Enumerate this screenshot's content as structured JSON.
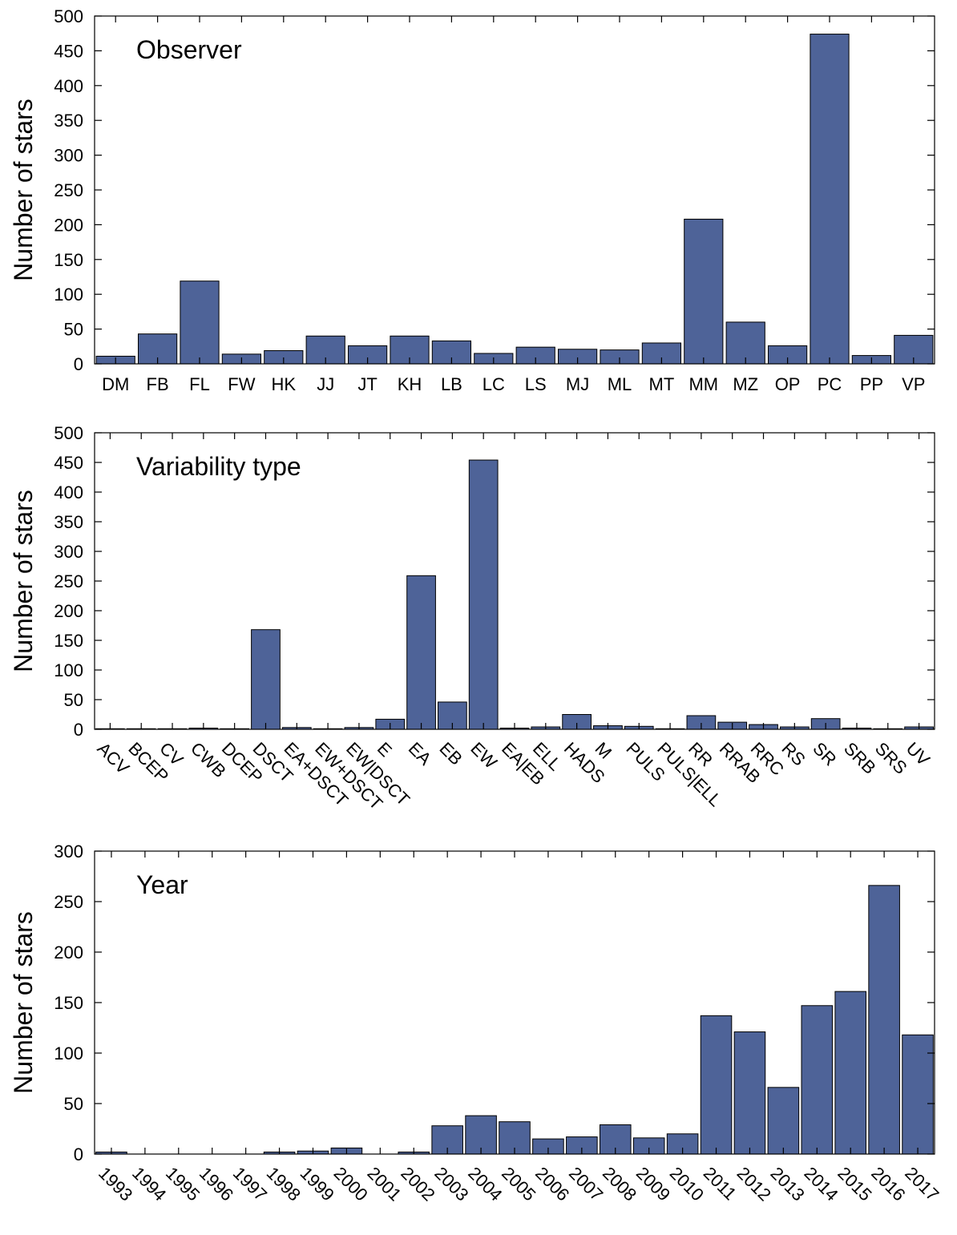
{
  "chart_data": [
    {
      "type": "bar",
      "annotation": "Observer",
      "ylabel": "Number of stars",
      "xlabel": "",
      "ylim": [
        0,
        500
      ],
      "yticks": [
        0,
        50,
        100,
        150,
        200,
        250,
        300,
        350,
        400,
        450,
        500
      ],
      "x_label_rotation": "horizontal",
      "categories": [
        "DM",
        "FB",
        "FL",
        "FW",
        "HK",
        "JJ",
        "JT",
        "KH",
        "LB",
        "LC",
        "LS",
        "MJ",
        "ML",
        "MT",
        "MM",
        "MZ",
        "OP",
        "PC",
        "PP",
        "VP"
      ],
      "values": [
        11,
        43,
        119,
        14,
        19,
        40,
        26,
        40,
        33,
        15,
        24,
        21,
        20,
        30,
        208,
        60,
        26,
        474,
        12,
        41
      ],
      "bar_color": "#4e6398",
      "grid": false
    },
    {
      "type": "bar",
      "annotation": "Variability type",
      "ylabel": "Number of stars",
      "xlabel": "",
      "ylim": [
        0,
        500
      ],
      "yticks": [
        0,
        50,
        100,
        150,
        200,
        250,
        300,
        350,
        400,
        450,
        500
      ],
      "x_label_rotation": "diagonal",
      "categories": [
        "ACV",
        "BCEP",
        "CV",
        "CWB",
        "DCEP",
        "DSCT",
        "EA+DSCT",
        "EW+DSCT",
        "EW|DSCT",
        "E",
        "EA",
        "EB",
        "EW",
        "EA|EB",
        "ELL",
        "HADS",
        "M",
        "PULS",
        "PULS|ELL",
        "RR",
        "RRAB",
        "RRC",
        "RS",
        "SR",
        "SRB",
        "SRS",
        "UV"
      ],
      "values": [
        1,
        1,
        1,
        2,
        1,
        168,
        3,
        1,
        3,
        17,
        259,
        46,
        454,
        2,
        4,
        25,
        6,
        5,
        1,
        23,
        12,
        8,
        4,
        18,
        2,
        1,
        4
      ],
      "bar_color": "#4e6398",
      "grid": false
    },
    {
      "type": "bar",
      "annotation": "Year",
      "ylabel": "Number of stars",
      "xlabel": "",
      "ylim": [
        0,
        300
      ],
      "yticks": [
        0,
        50,
        100,
        150,
        200,
        250,
        300
      ],
      "x_label_rotation": "diagonal",
      "categories": [
        "1993",
        "1994",
        "1995",
        "1996",
        "1997",
        "1998",
        "1999",
        "2000",
        "2001",
        "2002",
        "2003",
        "2004",
        "2005",
        "2006",
        "2007",
        "2008",
        "2009",
        "2010",
        "2011",
        "2012",
        "2013",
        "2014",
        "2015",
        "2016",
        "2017"
      ],
      "values": [
        2,
        0,
        0,
        0,
        0,
        2,
        3,
        6,
        0,
        2,
        28,
        38,
        32,
        15,
        17,
        29,
        16,
        20,
        137,
        121,
        66,
        147,
        161,
        266,
        118
      ],
      "bar_color": "#4e6398",
      "grid": false
    }
  ]
}
